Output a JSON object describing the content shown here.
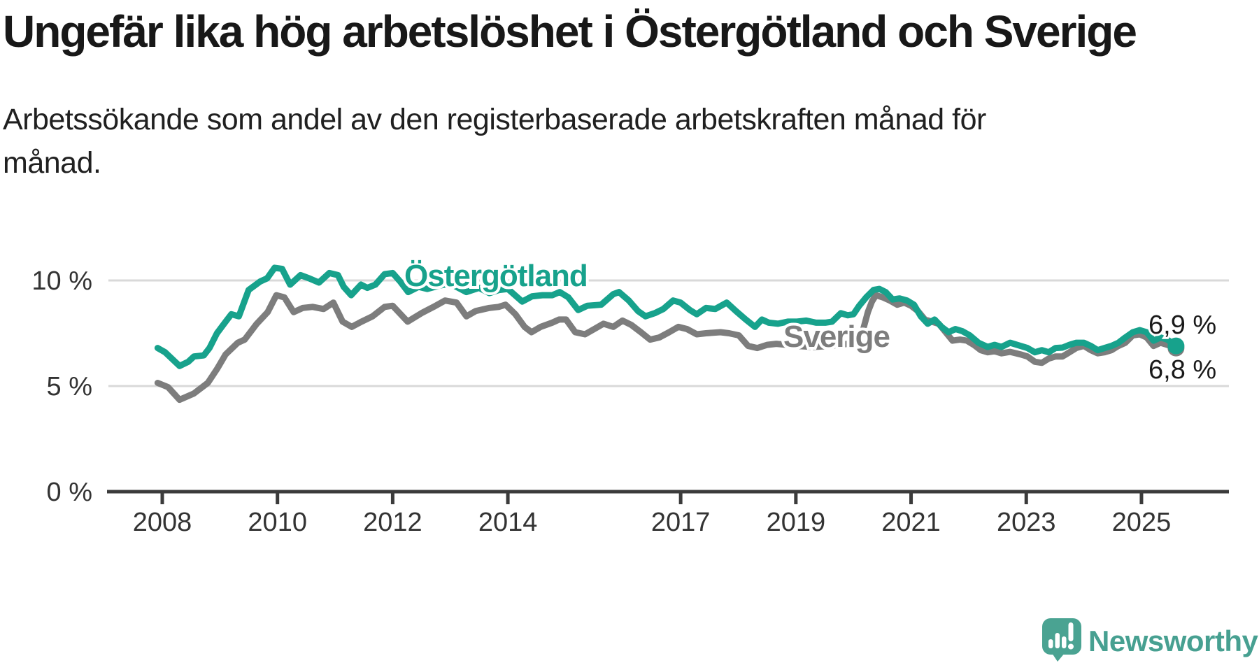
{
  "header": {
    "title": "Ungefär lika hög arbetslöshet i Östergötland och Sverige",
    "subtitle_lines": [
      "Arbetssökande som andel av den registerbaserade arbetskraften månad för",
      "månad."
    ]
  },
  "branding": {
    "name": "Newsworthy",
    "icon": "newsworthy-speech-bubble-bar-chart-icon",
    "text_color": "#47a091",
    "icon_color": "#4aa392"
  },
  "colors": {
    "background": "#ffffff",
    "grid": "#d9d9d9",
    "axis": "#3b3b3b",
    "tick_label": "#333333",
    "value_label": "#1a1a1a",
    "ostergotland": "#17a28c",
    "sverige": "#7d7d7d"
  },
  "chart_data": {
    "type": "line",
    "unit": "%",
    "x_range": [
      2007.92,
      2025.62
    ],
    "x_axis": {
      "tick_years": [
        2008,
        2010,
        2012,
        2014,
        2017,
        2019,
        2021,
        2023,
        2025
      ]
    },
    "y_axis": {
      "range": [
        0,
        11.7
      ],
      "ticks": [
        {
          "value": 0,
          "label": "0 %"
        },
        {
          "value": 5,
          "label": "5 %"
        },
        {
          "value": 10,
          "label": "10 %"
        }
      ],
      "grid_values": [
        5,
        10
      ]
    },
    "legend_position": "inline-labels",
    "grid": true,
    "series": [
      {
        "name": "Sverige",
        "color": "#7d7d7d",
        "end_label": "6,8 %",
        "end_value": 6.8,
        "data": [
          [
            2007.92,
            5.15
          ],
          [
            2008.1,
            4.95
          ],
          [
            2008.3,
            4.35
          ],
          [
            2008.55,
            4.65
          ],
          [
            2008.79,
            5.15
          ],
          [
            2008.95,
            5.8
          ],
          [
            2009.1,
            6.5
          ],
          [
            2009.31,
            7.05
          ],
          [
            2009.43,
            7.2
          ],
          [
            2009.64,
            7.95
          ],
          [
            2009.83,
            8.5
          ],
          [
            2009.98,
            9.3
          ],
          [
            2010.12,
            9.2
          ],
          [
            2010.28,
            8.5
          ],
          [
            2010.44,
            8.7
          ],
          [
            2010.61,
            8.75
          ],
          [
            2010.8,
            8.65
          ],
          [
            2010.97,
            8.95
          ],
          [
            2011.13,
            8.05
          ],
          [
            2011.29,
            7.8
          ],
          [
            2011.46,
            8.05
          ],
          [
            2011.65,
            8.3
          ],
          [
            2011.86,
            8.75
          ],
          [
            2012.0,
            8.8
          ],
          [
            2012.26,
            8.05
          ],
          [
            2012.5,
            8.45
          ],
          [
            2012.71,
            8.75
          ],
          [
            2012.91,
            9.05
          ],
          [
            2013.11,
            8.95
          ],
          [
            2013.28,
            8.3
          ],
          [
            2013.44,
            8.55
          ],
          [
            2013.68,
            8.7
          ],
          [
            2013.84,
            8.75
          ],
          [
            2013.96,
            8.85
          ],
          [
            2014.13,
            8.4
          ],
          [
            2014.29,
            7.8
          ],
          [
            2014.41,
            7.55
          ],
          [
            2014.57,
            7.8
          ],
          [
            2014.77,
            8.0
          ],
          [
            2014.89,
            8.15
          ],
          [
            2015.01,
            8.15
          ],
          [
            2015.17,
            7.55
          ],
          [
            2015.34,
            7.45
          ],
          [
            2015.5,
            7.7
          ],
          [
            2015.66,
            7.95
          ],
          [
            2015.83,
            7.8
          ],
          [
            2015.99,
            8.1
          ],
          [
            2016.14,
            7.9
          ],
          [
            2016.31,
            7.55
          ],
          [
            2016.47,
            7.2
          ],
          [
            2016.63,
            7.3
          ],
          [
            2016.8,
            7.55
          ],
          [
            2016.96,
            7.8
          ],
          [
            2017.11,
            7.7
          ],
          [
            2017.28,
            7.45
          ],
          [
            2017.44,
            7.5
          ],
          [
            2017.69,
            7.55
          ],
          [
            2017.84,
            7.5
          ],
          [
            2018.01,
            7.4
          ],
          [
            2018.17,
            6.9
          ],
          [
            2018.33,
            6.8
          ],
          [
            2018.5,
            6.95
          ],
          [
            2018.66,
            7.0
          ],
          [
            2018.85,
            6.95
          ],
          [
            2019.0,
            6.9
          ],
          [
            2019.3,
            6.85
          ],
          [
            2019.6,
            6.9
          ],
          [
            2019.9,
            7.0
          ],
          [
            2020.05,
            7.05
          ],
          [
            2020.15,
            7.5
          ],
          [
            2020.25,
            8.5
          ],
          [
            2020.32,
            9.0
          ],
          [
            2020.39,
            9.3
          ],
          [
            2020.51,
            9.2
          ],
          [
            2020.63,
            9.05
          ],
          [
            2020.76,
            8.85
          ],
          [
            2020.88,
            8.95
          ],
          [
            2021.0,
            8.8
          ],
          [
            2021.12,
            8.55
          ],
          [
            2021.24,
            8.15
          ],
          [
            2021.36,
            8.05
          ],
          [
            2021.48,
            7.95
          ],
          [
            2021.6,
            7.55
          ],
          [
            2021.72,
            7.15
          ],
          [
            2021.85,
            7.2
          ],
          [
            2021.97,
            7.15
          ],
          [
            2022.09,
            6.95
          ],
          [
            2022.21,
            6.7
          ],
          [
            2022.33,
            6.6
          ],
          [
            2022.45,
            6.65
          ],
          [
            2022.57,
            6.55
          ],
          [
            2022.72,
            6.62
          ],
          [
            2022.9,
            6.5
          ],
          [
            2023.02,
            6.4
          ],
          [
            2023.15,
            6.15
          ],
          [
            2023.27,
            6.1
          ],
          [
            2023.39,
            6.3
          ],
          [
            2023.51,
            6.4
          ],
          [
            2023.63,
            6.4
          ],
          [
            2023.75,
            6.6
          ],
          [
            2023.87,
            6.8
          ],
          [
            2024.0,
            6.9
          ],
          [
            2024.12,
            6.7
          ],
          [
            2024.24,
            6.55
          ],
          [
            2024.36,
            6.6
          ],
          [
            2024.48,
            6.7
          ],
          [
            2024.6,
            6.9
          ],
          [
            2024.72,
            7.05
          ],
          [
            2024.85,
            7.4
          ],
          [
            2024.97,
            7.45
          ],
          [
            2025.09,
            7.3
          ],
          [
            2025.21,
            6.9
          ],
          [
            2025.33,
            7.05
          ],
          [
            2025.45,
            6.95
          ],
          [
            2025.6,
            6.8
          ]
        ]
      },
      {
        "name": "Östergötland",
        "color": "#17a28c",
        "end_label": "6,9 %",
        "end_value": 6.9,
        "data": [
          [
            2007.92,
            6.8
          ],
          [
            2008.05,
            6.6
          ],
          [
            2008.3,
            5.95
          ],
          [
            2008.45,
            6.15
          ],
          [
            2008.55,
            6.4
          ],
          [
            2008.72,
            6.45
          ],
          [
            2008.82,
            6.8
          ],
          [
            2008.95,
            7.5
          ],
          [
            2009.1,
            8.05
          ],
          [
            2009.2,
            8.4
          ],
          [
            2009.33,
            8.3
          ],
          [
            2009.5,
            9.55
          ],
          [
            2009.7,
            9.95
          ],
          [
            2009.82,
            10.1
          ],
          [
            2009.95,
            10.6
          ],
          [
            2010.08,
            10.55
          ],
          [
            2010.22,
            9.8
          ],
          [
            2010.4,
            10.25
          ],
          [
            2010.55,
            10.1
          ],
          [
            2010.72,
            9.9
          ],
          [
            2010.9,
            10.35
          ],
          [
            2011.05,
            10.25
          ],
          [
            2011.15,
            9.7
          ],
          [
            2011.28,
            9.3
          ],
          [
            2011.45,
            9.8
          ],
          [
            2011.56,
            9.65
          ],
          [
            2011.7,
            9.8
          ],
          [
            2011.86,
            10.3
          ],
          [
            2012.0,
            10.35
          ],
          [
            2012.13,
            9.95
          ],
          [
            2012.27,
            9.45
          ],
          [
            2012.45,
            9.7
          ],
          [
            2012.6,
            9.6
          ],
          [
            2012.8,
            9.75
          ],
          [
            2013.0,
            9.85
          ],
          [
            2013.28,
            9.45
          ],
          [
            2013.5,
            9.65
          ],
          [
            2013.68,
            9.4
          ],
          [
            2013.85,
            9.55
          ],
          [
            2014.0,
            9.6
          ],
          [
            2014.25,
            9.0
          ],
          [
            2014.42,
            9.25
          ],
          [
            2014.6,
            9.3
          ],
          [
            2014.77,
            9.3
          ],
          [
            2014.9,
            9.45
          ],
          [
            2015.05,
            9.2
          ],
          [
            2015.22,
            8.6
          ],
          [
            2015.38,
            8.8
          ],
          [
            2015.62,
            8.85
          ],
          [
            2015.83,
            9.35
          ],
          [
            2015.93,
            9.45
          ],
          [
            2016.1,
            9.05
          ],
          [
            2016.26,
            8.55
          ],
          [
            2016.39,
            8.3
          ],
          [
            2016.55,
            8.45
          ],
          [
            2016.7,
            8.65
          ],
          [
            2016.87,
            9.05
          ],
          [
            2017.0,
            8.95
          ],
          [
            2017.16,
            8.6
          ],
          [
            2017.28,
            8.4
          ],
          [
            2017.44,
            8.7
          ],
          [
            2017.6,
            8.65
          ],
          [
            2017.8,
            8.95
          ],
          [
            2017.96,
            8.55
          ],
          [
            2018.13,
            8.15
          ],
          [
            2018.29,
            7.8
          ],
          [
            2018.41,
            8.15
          ],
          [
            2018.53,
            8.0
          ],
          [
            2018.69,
            7.95
          ],
          [
            2018.86,
            8.05
          ],
          [
            2019.02,
            8.05
          ],
          [
            2019.18,
            8.1
          ],
          [
            2019.35,
            8.0
          ],
          [
            2019.51,
            8.0
          ],
          [
            2019.63,
            8.05
          ],
          [
            2019.78,
            8.45
          ],
          [
            2019.9,
            8.35
          ],
          [
            2020.0,
            8.4
          ],
          [
            2020.1,
            8.8
          ],
          [
            2020.22,
            9.2
          ],
          [
            2020.35,
            9.55
          ],
          [
            2020.45,
            9.6
          ],
          [
            2020.56,
            9.45
          ],
          [
            2020.68,
            9.1
          ],
          [
            2020.8,
            9.15
          ],
          [
            2020.93,
            9.05
          ],
          [
            2021.05,
            8.85
          ],
          [
            2021.17,
            8.3
          ],
          [
            2021.29,
            7.95
          ],
          [
            2021.41,
            8.15
          ],
          [
            2021.53,
            7.8
          ],
          [
            2021.65,
            7.55
          ],
          [
            2021.77,
            7.7
          ],
          [
            2021.89,
            7.6
          ],
          [
            2022.02,
            7.4
          ],
          [
            2022.17,
            7.05
          ],
          [
            2022.33,
            6.85
          ],
          [
            2022.45,
            6.95
          ],
          [
            2022.57,
            6.85
          ],
          [
            2022.72,
            7.05
          ],
          [
            2022.9,
            6.9
          ],
          [
            2023.02,
            6.8
          ],
          [
            2023.15,
            6.6
          ],
          [
            2023.27,
            6.7
          ],
          [
            2023.39,
            6.6
          ],
          [
            2023.51,
            6.8
          ],
          [
            2023.63,
            6.82
          ],
          [
            2023.75,
            6.95
          ],
          [
            2023.87,
            7.05
          ],
          [
            2024.0,
            7.05
          ],
          [
            2024.12,
            6.9
          ],
          [
            2024.24,
            6.7
          ],
          [
            2024.36,
            6.8
          ],
          [
            2024.48,
            6.9
          ],
          [
            2024.6,
            7.05
          ],
          [
            2024.72,
            7.3
          ],
          [
            2024.85,
            7.55
          ],
          [
            2024.97,
            7.65
          ],
          [
            2025.09,
            7.55
          ],
          [
            2025.21,
            7.15
          ],
          [
            2025.33,
            7.3
          ],
          [
            2025.45,
            7.2
          ],
          [
            2025.6,
            6.9
          ]
        ]
      }
    ]
  }
}
